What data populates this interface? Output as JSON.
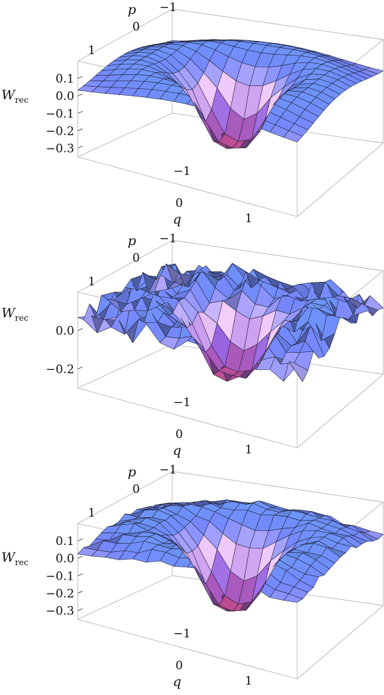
{
  "chart_data": [
    {
      "type": "surface3d",
      "variant": "smooth",
      "xlabel": "q",
      "ylabel": "p",
      "zlabel": "W",
      "zlabel_sub": "rec",
      "q_ticks": [
        "−1",
        "0",
        "1"
      ],
      "p_ticks": [
        "−1",
        "0",
        "1"
      ],
      "z_ticks": [
        "0.1",
        "0.0",
        "−0.1",
        "−0.2",
        "−0.3"
      ],
      "z_tick_values": [
        0.1,
        0.0,
        -0.1,
        -0.2,
        -0.3
      ],
      "q_range": [
        -1.6,
        1.6
      ],
      "p_range": [
        -1.6,
        1.6
      ],
      "z_range": [
        -0.35,
        0.2
      ],
      "mesh": 16,
      "noise": 0.0,
      "model": {
        "ring_peak": 0.18,
        "center_min": -0.3
      }
    },
    {
      "type": "surface3d",
      "variant": "noisy",
      "xlabel": "q",
      "ylabel": "p",
      "zlabel": "W",
      "zlabel_sub": "rec",
      "q_ticks": [
        "−1",
        "0",
        "1"
      ],
      "p_ticks": [
        "−1",
        "0",
        "1"
      ],
      "z_ticks": [
        "0.0",
        "−0.2"
      ],
      "z_tick_values": [
        0.0,
        -0.2
      ],
      "q_range": [
        -1.6,
        1.6
      ],
      "p_range": [
        -1.6,
        1.6
      ],
      "z_range": [
        -0.3,
        0.2
      ],
      "mesh": 16,
      "noise": 0.05,
      "model": {
        "ring_peak": 0.16,
        "center_min": -0.25
      }
    },
    {
      "type": "surface3d",
      "variant": "slightly-noisy",
      "xlabel": "q",
      "ylabel": "p",
      "zlabel": "W",
      "zlabel_sub": "rec",
      "q_ticks": [
        "−1",
        "0",
        "1"
      ],
      "p_ticks": [
        "−1",
        "0",
        "1"
      ],
      "z_ticks": [
        "0.1",
        "0.0",
        "−0.1",
        "−0.2",
        "−0.3"
      ],
      "z_tick_values": [
        0.1,
        0.0,
        -0.1,
        -0.2,
        -0.3
      ],
      "q_range": [
        -1.6,
        1.6
      ],
      "p_range": [
        -1.6,
        1.6
      ],
      "z_range": [
        -0.35,
        0.2
      ],
      "mesh": 16,
      "noise": 0.012,
      "model": {
        "ring_peak": 0.18,
        "center_min": -0.3
      }
    }
  ],
  "colors": {
    "edge_blue": "#5d9ae6",
    "mid_blue": "#6f7ff0",
    "pink": "#e6c2ec",
    "violet": "#8f5fd6",
    "deep": "#c43d62",
    "frame": "#b5b5b5"
  }
}
